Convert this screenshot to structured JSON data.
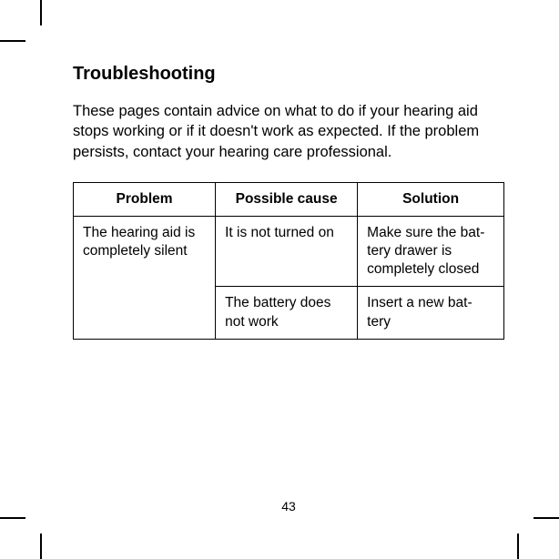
{
  "heading": "Troubleshooting",
  "intro": "These pages contain advice on what to do if your hearing aid stops working or if it doesn't work as expected. If the problem persists, contact your hearing care professional.",
  "table": {
    "columns": [
      "Problem",
      "Possible cause",
      "Solution"
    ],
    "col_widths": [
      "33%",
      "33%",
      "34%"
    ],
    "rows": [
      {
        "problem": "The hearing aid is completely silent",
        "cause": "It is not turned on",
        "solution": "Make sure the bat-tery drawer is completely closed"
      },
      {
        "problem": null,
        "cause": "The battery does not work",
        "solution": "Insert a new bat-tery"
      }
    ]
  },
  "page_number": "43",
  "colors": {
    "text": "#000000",
    "background": "#ffffff",
    "border": "#000000"
  }
}
